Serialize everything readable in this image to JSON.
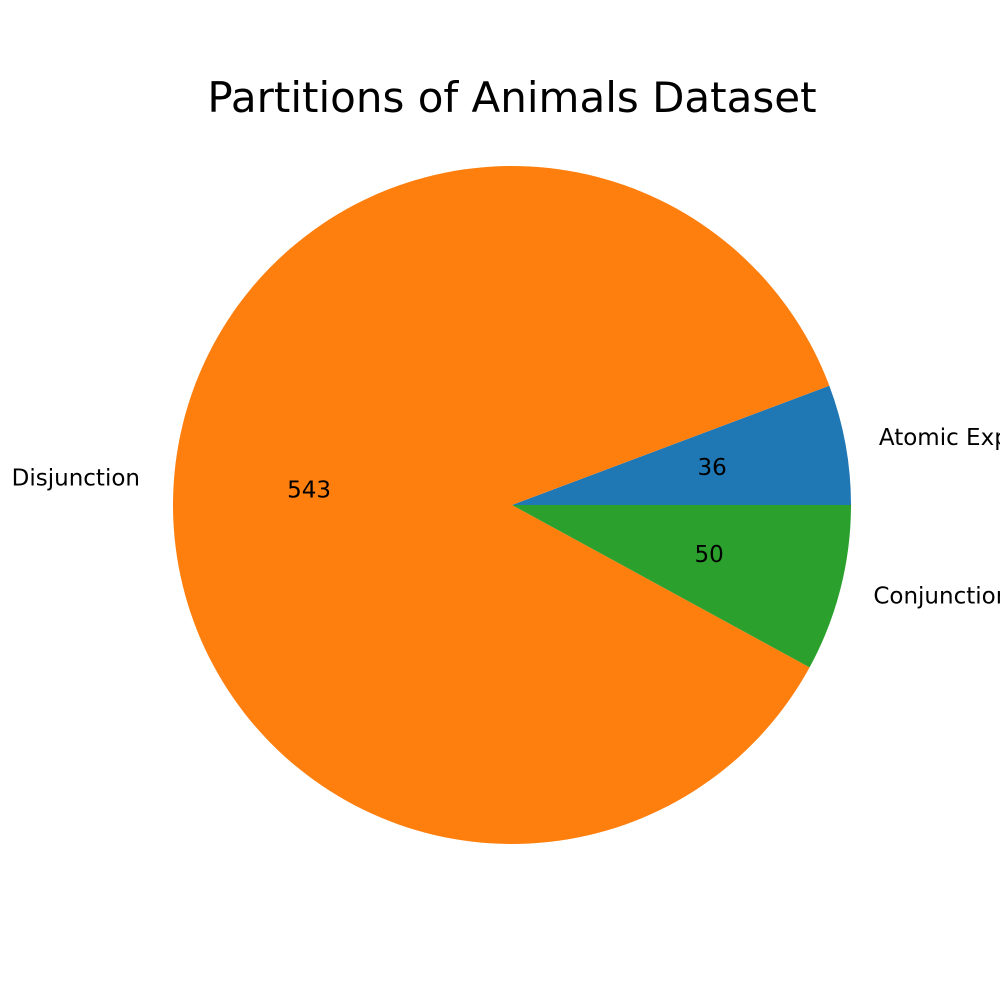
{
  "chart_data": {
    "type": "pie",
    "title": "Partitions of Animals Dataset",
    "slices": [
      {
        "label": "Atomic Expression",
        "value": 36,
        "value_label": "36",
        "color": "#1f77b4"
      },
      {
        "label": "Disjunction",
        "value": 543,
        "value_label": "543",
        "color": "#ff7f0e"
      },
      {
        "label": "Conjunction",
        "value": 50,
        "value_label": "50",
        "color": "#2ca02c"
      }
    ],
    "start_angle_deg": 0,
    "direction": "counterclockwise",
    "legend": "none"
  }
}
